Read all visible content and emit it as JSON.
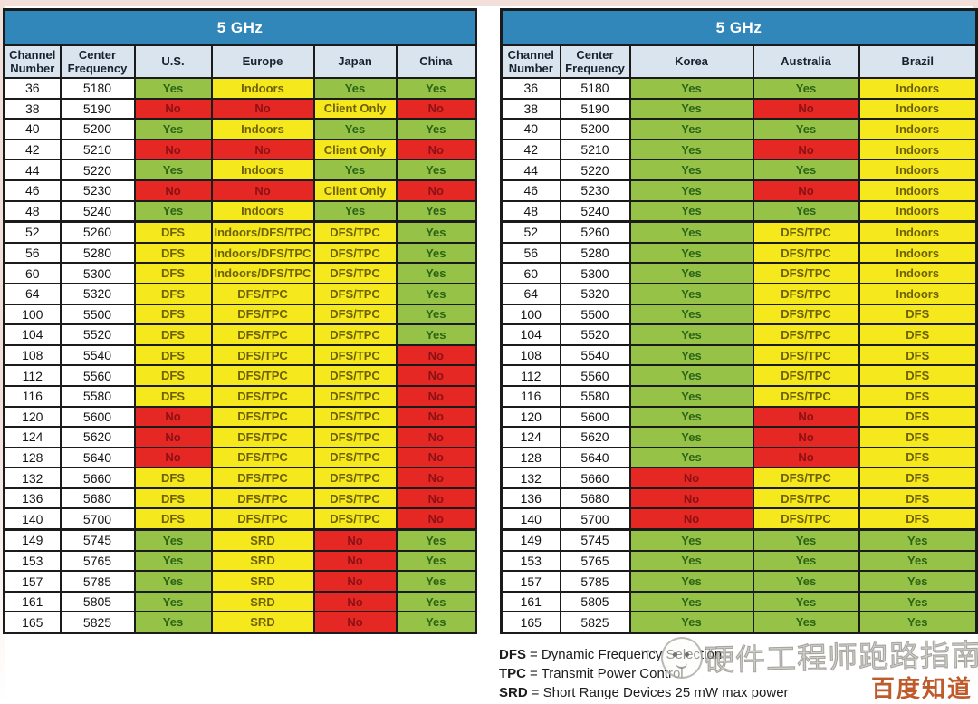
{
  "chart_data": [
    {
      "type": "table",
      "title": "5 GHz",
      "columns": [
        "Channel Number",
        "Center Frequency",
        "U.S.",
        "Europe",
        "Japan",
        "China"
      ],
      "group_breaks": [
        "52",
        "149"
      ],
      "rows": [
        [
          "36",
          "5180",
          [
            "Yes",
            "g"
          ],
          [
            "Indoors",
            "y"
          ],
          [
            "Yes",
            "g"
          ],
          [
            "Yes",
            "g"
          ]
        ],
        [
          "38",
          "5190",
          [
            "No",
            "r"
          ],
          [
            "No",
            "r"
          ],
          [
            "Client Only",
            "y"
          ],
          [
            "No",
            "r"
          ]
        ],
        [
          "40",
          "5200",
          [
            "Yes",
            "g"
          ],
          [
            "Indoors",
            "y"
          ],
          [
            "Yes",
            "g"
          ],
          [
            "Yes",
            "g"
          ]
        ],
        [
          "42",
          "5210",
          [
            "No",
            "r"
          ],
          [
            "No",
            "r"
          ],
          [
            "Client Only",
            "y"
          ],
          [
            "No",
            "r"
          ]
        ],
        [
          "44",
          "5220",
          [
            "Yes",
            "g"
          ],
          [
            "Indoors",
            "y"
          ],
          [
            "Yes",
            "g"
          ],
          [
            "Yes",
            "g"
          ]
        ],
        [
          "46",
          "5230",
          [
            "No",
            "r"
          ],
          [
            "No",
            "r"
          ],
          [
            "Client Only",
            "y"
          ],
          [
            "No",
            "r"
          ]
        ],
        [
          "48",
          "5240",
          [
            "Yes",
            "g"
          ],
          [
            "Indoors",
            "y"
          ],
          [
            "Yes",
            "g"
          ],
          [
            "Yes",
            "g"
          ]
        ],
        [
          "52",
          "5260",
          [
            "DFS",
            "y"
          ],
          [
            "Indoors/DFS/TPC",
            "y"
          ],
          [
            "DFS/TPC",
            "y"
          ],
          [
            "Yes",
            "g"
          ]
        ],
        [
          "56",
          "5280",
          [
            "DFS",
            "y"
          ],
          [
            "Indoors/DFS/TPC",
            "y"
          ],
          [
            "DFS/TPC",
            "y"
          ],
          [
            "Yes",
            "g"
          ]
        ],
        [
          "60",
          "5300",
          [
            "DFS",
            "y"
          ],
          [
            "Indoors/DFS/TPC",
            "y"
          ],
          [
            "DFS/TPC",
            "y"
          ],
          [
            "Yes",
            "g"
          ]
        ],
        [
          "64",
          "5320",
          [
            "DFS",
            "y"
          ],
          [
            "DFS/TPC",
            "y"
          ],
          [
            "DFS/TPC",
            "y"
          ],
          [
            "Yes",
            "g"
          ]
        ],
        [
          "100",
          "5500",
          [
            "DFS",
            "y"
          ],
          [
            "DFS/TPC",
            "y"
          ],
          [
            "DFS/TPC",
            "y"
          ],
          [
            "Yes",
            "g"
          ]
        ],
        [
          "104",
          "5520",
          [
            "DFS",
            "y"
          ],
          [
            "DFS/TPC",
            "y"
          ],
          [
            "DFS/TPC",
            "y"
          ],
          [
            "Yes",
            "g"
          ]
        ],
        [
          "108",
          "5540",
          [
            "DFS",
            "y"
          ],
          [
            "DFS/TPC",
            "y"
          ],
          [
            "DFS/TPC",
            "y"
          ],
          [
            "No",
            "r"
          ]
        ],
        [
          "112",
          "5560",
          [
            "DFS",
            "y"
          ],
          [
            "DFS/TPC",
            "y"
          ],
          [
            "DFS/TPC",
            "y"
          ],
          [
            "No",
            "r"
          ]
        ],
        [
          "116",
          "5580",
          [
            "DFS",
            "y"
          ],
          [
            "DFS/TPC",
            "y"
          ],
          [
            "DFS/TPC",
            "y"
          ],
          [
            "No",
            "r"
          ]
        ],
        [
          "120",
          "5600",
          [
            "No",
            "r"
          ],
          [
            "DFS/TPC",
            "y"
          ],
          [
            "DFS/TPC",
            "y"
          ],
          [
            "No",
            "r"
          ]
        ],
        [
          "124",
          "5620",
          [
            "No",
            "r"
          ],
          [
            "DFS/TPC",
            "y"
          ],
          [
            "DFS/TPC",
            "y"
          ],
          [
            "No",
            "r"
          ]
        ],
        [
          "128",
          "5640",
          [
            "No",
            "r"
          ],
          [
            "DFS/TPC",
            "y"
          ],
          [
            "DFS/TPC",
            "y"
          ],
          [
            "No",
            "r"
          ]
        ],
        [
          "132",
          "5660",
          [
            "DFS",
            "y"
          ],
          [
            "DFS/TPC",
            "y"
          ],
          [
            "DFS/TPC",
            "y"
          ],
          [
            "No",
            "r"
          ]
        ],
        [
          "136",
          "5680",
          [
            "DFS",
            "y"
          ],
          [
            "DFS/TPC",
            "y"
          ],
          [
            "DFS/TPC",
            "y"
          ],
          [
            "No",
            "r"
          ]
        ],
        [
          "140",
          "5700",
          [
            "DFS",
            "y"
          ],
          [
            "DFS/TPC",
            "y"
          ],
          [
            "DFS/TPC",
            "y"
          ],
          [
            "No",
            "r"
          ]
        ],
        [
          "149",
          "5745",
          [
            "Yes",
            "g"
          ],
          [
            "SRD",
            "y"
          ],
          [
            "No",
            "r"
          ],
          [
            "Yes",
            "g"
          ]
        ],
        [
          "153",
          "5765",
          [
            "Yes",
            "g"
          ],
          [
            "SRD",
            "y"
          ],
          [
            "No",
            "r"
          ],
          [
            "Yes",
            "g"
          ]
        ],
        [
          "157",
          "5785",
          [
            "Yes",
            "g"
          ],
          [
            "SRD",
            "y"
          ],
          [
            "No",
            "r"
          ],
          [
            "Yes",
            "g"
          ]
        ],
        [
          "161",
          "5805",
          [
            "Yes",
            "g"
          ],
          [
            "SRD",
            "y"
          ],
          [
            "No",
            "r"
          ],
          [
            "Yes",
            "g"
          ]
        ],
        [
          "165",
          "5825",
          [
            "Yes",
            "g"
          ],
          [
            "SRD",
            "y"
          ],
          [
            "No",
            "r"
          ],
          [
            "Yes",
            "g"
          ]
        ]
      ]
    },
    {
      "type": "table",
      "title": "5 GHz",
      "columns": [
        "Channel Number",
        "Center Frequency",
        "Korea",
        "Australia",
        "Brazil"
      ],
      "group_breaks": [
        "52",
        "149"
      ],
      "rows": [
        [
          "36",
          "5180",
          [
            "Yes",
            "g"
          ],
          [
            "Yes",
            "g"
          ],
          [
            "Indoors",
            "y"
          ]
        ],
        [
          "38",
          "5190",
          [
            "Yes",
            "g"
          ],
          [
            "No",
            "r"
          ],
          [
            "Indoors",
            "y"
          ]
        ],
        [
          "40",
          "5200",
          [
            "Yes",
            "g"
          ],
          [
            "Yes",
            "g"
          ],
          [
            "Indoors",
            "y"
          ]
        ],
        [
          "42",
          "5210",
          [
            "Yes",
            "g"
          ],
          [
            "No",
            "r"
          ],
          [
            "Indoors",
            "y"
          ]
        ],
        [
          "44",
          "5220",
          [
            "Yes",
            "g"
          ],
          [
            "Yes",
            "g"
          ],
          [
            "Indoors",
            "y"
          ]
        ],
        [
          "46",
          "5230",
          [
            "Yes",
            "g"
          ],
          [
            "No",
            "r"
          ],
          [
            "Indoors",
            "y"
          ]
        ],
        [
          "48",
          "5240",
          [
            "Yes",
            "g"
          ],
          [
            "Yes",
            "g"
          ],
          [
            "Indoors",
            "y"
          ]
        ],
        [
          "52",
          "5260",
          [
            "Yes",
            "g"
          ],
          [
            "DFS/TPC",
            "y"
          ],
          [
            "Indoors",
            "y"
          ]
        ],
        [
          "56",
          "5280",
          [
            "Yes",
            "g"
          ],
          [
            "DFS/TPC",
            "y"
          ],
          [
            "Indoors",
            "y"
          ]
        ],
        [
          "60",
          "5300",
          [
            "Yes",
            "g"
          ],
          [
            "DFS/TPC",
            "y"
          ],
          [
            "Indoors",
            "y"
          ]
        ],
        [
          "64",
          "5320",
          [
            "Yes",
            "g"
          ],
          [
            "DFS/TPC",
            "y"
          ],
          [
            "Indoors",
            "y"
          ]
        ],
        [
          "100",
          "5500",
          [
            "Yes",
            "g"
          ],
          [
            "DFS/TPC",
            "y"
          ],
          [
            "DFS",
            "y"
          ]
        ],
        [
          "104",
          "5520",
          [
            "Yes",
            "g"
          ],
          [
            "DFS/TPC",
            "y"
          ],
          [
            "DFS",
            "y"
          ]
        ],
        [
          "108",
          "5540",
          [
            "Yes",
            "g"
          ],
          [
            "DFS/TPC",
            "y"
          ],
          [
            "DFS",
            "y"
          ]
        ],
        [
          "112",
          "5560",
          [
            "Yes",
            "g"
          ],
          [
            "DFS/TPC",
            "y"
          ],
          [
            "DFS",
            "y"
          ]
        ],
        [
          "116",
          "5580",
          [
            "Yes",
            "g"
          ],
          [
            "DFS/TPC",
            "y"
          ],
          [
            "DFS",
            "y"
          ]
        ],
        [
          "120",
          "5600",
          [
            "Yes",
            "g"
          ],
          [
            "No",
            "r"
          ],
          [
            "DFS",
            "y"
          ]
        ],
        [
          "124",
          "5620",
          [
            "Yes",
            "g"
          ],
          [
            "No",
            "r"
          ],
          [
            "DFS",
            "y"
          ]
        ],
        [
          "128",
          "5640",
          [
            "Yes",
            "g"
          ],
          [
            "No",
            "r"
          ],
          [
            "DFS",
            "y"
          ]
        ],
        [
          "132",
          "5660",
          [
            "No",
            "r"
          ],
          [
            "DFS/TPC",
            "y"
          ],
          [
            "DFS",
            "y"
          ]
        ],
        [
          "136",
          "5680",
          [
            "No",
            "r"
          ],
          [
            "DFS/TPC",
            "y"
          ],
          [
            "DFS",
            "y"
          ]
        ],
        [
          "140",
          "5700",
          [
            "No",
            "r"
          ],
          [
            "DFS/TPC",
            "y"
          ],
          [
            "DFS",
            "y"
          ]
        ],
        [
          "149",
          "5745",
          [
            "Yes",
            "g"
          ],
          [
            "Yes",
            "g"
          ],
          [
            "Yes",
            "g"
          ]
        ],
        [
          "153",
          "5765",
          [
            "Yes",
            "g"
          ],
          [
            "Yes",
            "g"
          ],
          [
            "Yes",
            "g"
          ]
        ],
        [
          "157",
          "5785",
          [
            "Yes",
            "g"
          ],
          [
            "Yes",
            "g"
          ],
          [
            "Yes",
            "g"
          ]
        ],
        [
          "161",
          "5805",
          [
            "Yes",
            "g"
          ],
          [
            "Yes",
            "g"
          ],
          [
            "Yes",
            "g"
          ]
        ],
        [
          "165",
          "5825",
          [
            "Yes",
            "g"
          ],
          [
            "Yes",
            "g"
          ],
          [
            "Yes",
            "g"
          ]
        ]
      ]
    }
  ],
  "legend": {
    "items": [
      {
        "abbr": "DFS",
        "rest": "= Dynamic Frequency Selection"
      },
      {
        "abbr": "TPC",
        "rest": "= Transmit Power Control"
      },
      {
        "abbr": "SRD",
        "rest": "= Short Range Devices 25 mW max power"
      }
    ]
  },
  "watermark": {
    "site_text": "硬件工程师跑路指南",
    "brand_text": "百度知道"
  },
  "colors": {
    "allowed_green": "#96c347",
    "conditional_yellow": "#f5e91d",
    "denied_red": "#e52823",
    "band_header_blue": "#3186ba",
    "column_header_bg": "#d9e4ef",
    "brand_watermark": "#bf5a2b"
  },
  "status_classes": {
    "g": "cg",
    "y": "cy",
    "r": "cr"
  }
}
